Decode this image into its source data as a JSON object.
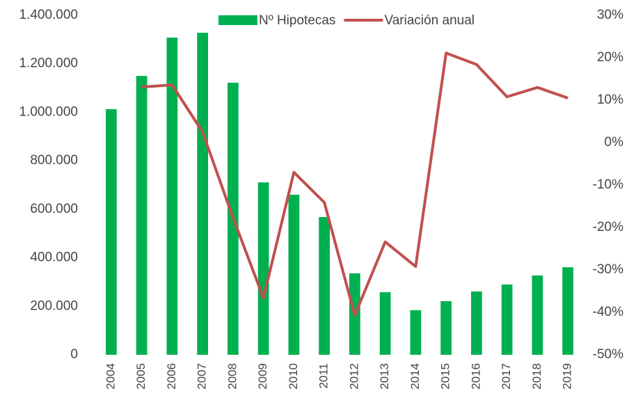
{
  "chart_data": {
    "type": "bar_line",
    "categories": [
      "2004",
      "2005",
      "2006",
      "2007",
      "2008",
      "2009",
      "2010",
      "2011",
      "2012",
      "2013",
      "2014",
      "2015",
      "2016",
      "2017",
      "2018",
      "2019"
    ],
    "series": [
      {
        "name": "Nº Hipotecas",
        "color": "#00b050",
        "type": "bar",
        "values": [
          1013000,
          1150000,
          1308000,
          1328000,
          1122000,
          711000,
          660000,
          568000,
          336000,
          258000,
          184000,
          221000,
          261000,
          290000,
          327000,
          361000
        ]
      },
      {
        "name": "Variación anual",
        "color": "#c0504d",
        "type": "line",
        "axis": "y2",
        "values": [
          null,
          13.1,
          13.6,
          2.5,
          -17.7,
          -36.6,
          -7,
          -14.1,
          -40.7,
          -23.4,
          -29.2,
          21.1,
          18.4,
          10.8,
          13,
          10.5
        ]
      }
    ],
    "ylim": [
      0,
      1400000
    ],
    "yticks": [
      0,
      {
        "value": 200000,
        "label": "200.000"
      },
      {
        "value": 400000,
        "label": "400.000"
      },
      {
        "value": 600000,
        "label": "600.000"
      },
      {
        "value": 800000,
        "label": "800.000"
      },
      {
        "value": 1000000,
        "label": "1.000.000"
      },
      {
        "value": 1200000,
        "label": "1.200.000"
      },
      {
        "value": 1400000,
        "label": "1.400.000"
      }
    ],
    "y2lim": [
      -50,
      30
    ],
    "y2ticks": [
      {
        "value": -50,
        "label": "-50%"
      },
      {
        "value": -40,
        "label": "-40%"
      },
      {
        "value": -30,
        "label": "-30%"
      },
      {
        "value": -20,
        "label": "-20%"
      },
      {
        "value": -10,
        "label": "-10%"
      },
      {
        "value": 0,
        "label": "0%"
      },
      {
        "value": 10,
        "label": "10%"
      },
      {
        "value": 20,
        "label": "20%"
      },
      {
        "value": 30,
        "label": "30%"
      }
    ],
    "legend": "top",
    "grid": false
  }
}
